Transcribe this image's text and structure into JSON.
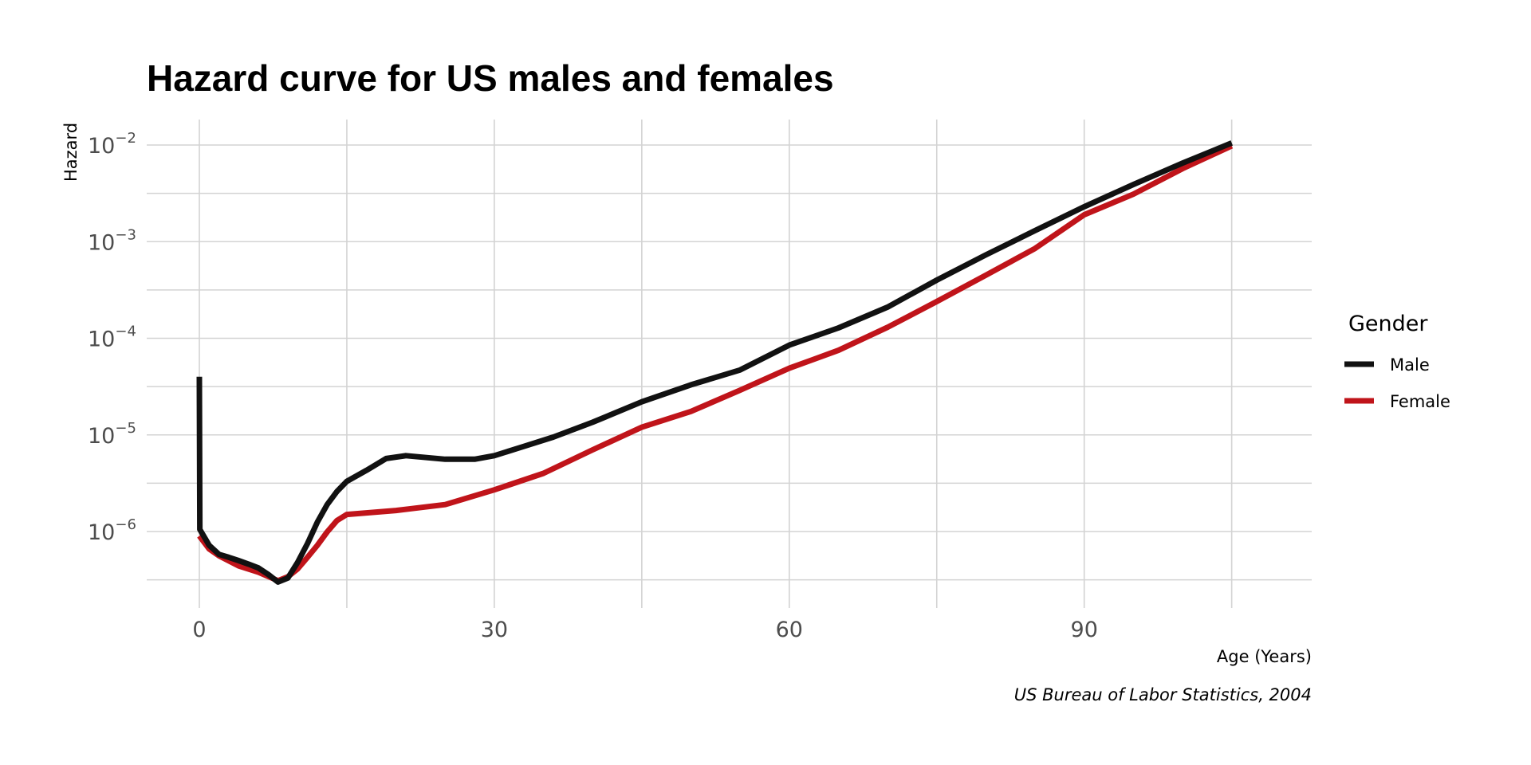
{
  "chart_data": {
    "type": "line",
    "title": "Hazard curve for US males and females",
    "xlabel": "Age (Years)",
    "ylabel": "Hazard",
    "caption": "US Bureau of Labor Statistics, 2004",
    "x_scale": "linear",
    "y_scale": "log10",
    "xlim": [
      -4.4,
      108.6
    ],
    "ylim_log10": [
      -6.5,
      -1.75
    ],
    "x_ticks": [
      0,
      30,
      60,
      90
    ],
    "x_tick_labels": [
      "0",
      "30",
      "60",
      "90"
    ],
    "x_minor_ticks": [
      15,
      45,
      75,
      105
    ],
    "y_ticks": [
      0.01,
      0.001,
      0.0001,
      1e-05,
      1e-06
    ],
    "y_tick_labels": [
      {
        "base": "10",
        "exponent": "−2"
      },
      {
        "base": "10",
        "exponent": "−3"
      },
      {
        "base": "10",
        "exponent": "−4"
      },
      {
        "base": "10",
        "exponent": "−5"
      },
      {
        "base": "10",
        "exponent": "−6"
      }
    ],
    "y_minor_ticks_log10": [
      -2.5,
      -3.5,
      -4.5,
      -5.5,
      -6.5
    ],
    "grid": true,
    "legend": {
      "title": "Gender",
      "placement": "right",
      "entries": [
        {
          "label": "Male",
          "color": "#111111"
        },
        {
          "label": "Female",
          "color": "#c0141a"
        }
      ]
    },
    "series": [
      {
        "name": "Male",
        "color": "#111111",
        "x": [
          0,
          0.05,
          1,
          2,
          3,
          4,
          5,
          6,
          7,
          8,
          9,
          10,
          11,
          12,
          13,
          14,
          15,
          17,
          19,
          21,
          25,
          28,
          30,
          33,
          36,
          40,
          45,
          50,
          55,
          60,
          65,
          70,
          75,
          80,
          85,
          90,
          95,
          100,
          105
        ],
        "y": [
          4e-05,
          1.05e-06,
          7.2e-07,
          5.8e-07,
          5.4e-07,
          5e-07,
          4.6e-07,
          4.2e-07,
          3.6e-07,
          3e-07,
          3.3e-07,
          4.8e-07,
          7.5e-07,
          1.25e-06,
          1.9e-06,
          2.6e-06,
          3.3e-06,
          4.3e-06,
          5.7e-06,
          6.1e-06,
          5.6e-06,
          5.6e-06,
          6.1e-06,
          7.6e-06,
          9.5e-06,
          1.35e-05,
          2.2e-05,
          3.3e-05,
          4.7e-05,
          8.5e-05,
          0.000128,
          0.00021,
          0.0004,
          0.00073,
          0.0013,
          0.0023,
          0.0039,
          0.0065,
          0.0105
        ]
      },
      {
        "name": "Female",
        "color": "#c0141a",
        "x": [
          0,
          1,
          2,
          4,
          6,
          8,
          9,
          10,
          11,
          12,
          13,
          14,
          15,
          17,
          20,
          25,
          30,
          35,
          40,
          45,
          50,
          55,
          60,
          65,
          70,
          75,
          80,
          85,
          90,
          95,
          100,
          105
        ],
        "y": [
          9e-07,
          6.6e-07,
          5.6e-07,
          4.4e-07,
          3.8e-07,
          3.1e-07,
          3.4e-07,
          4.1e-07,
          5.4e-07,
          7.2e-07,
          9.9e-07,
          1.3e-06,
          1.5e-06,
          1.56e-06,
          1.65e-06,
          1.9e-06,
          2.7e-06,
          4e-06,
          7e-06,
          1.2e-05,
          1.75e-05,
          2.9e-05,
          4.9e-05,
          7.5e-05,
          0.00013,
          0.00024,
          0.00045,
          0.00085,
          0.0019,
          0.0031,
          0.0057,
          0.0098
        ]
      }
    ]
  }
}
